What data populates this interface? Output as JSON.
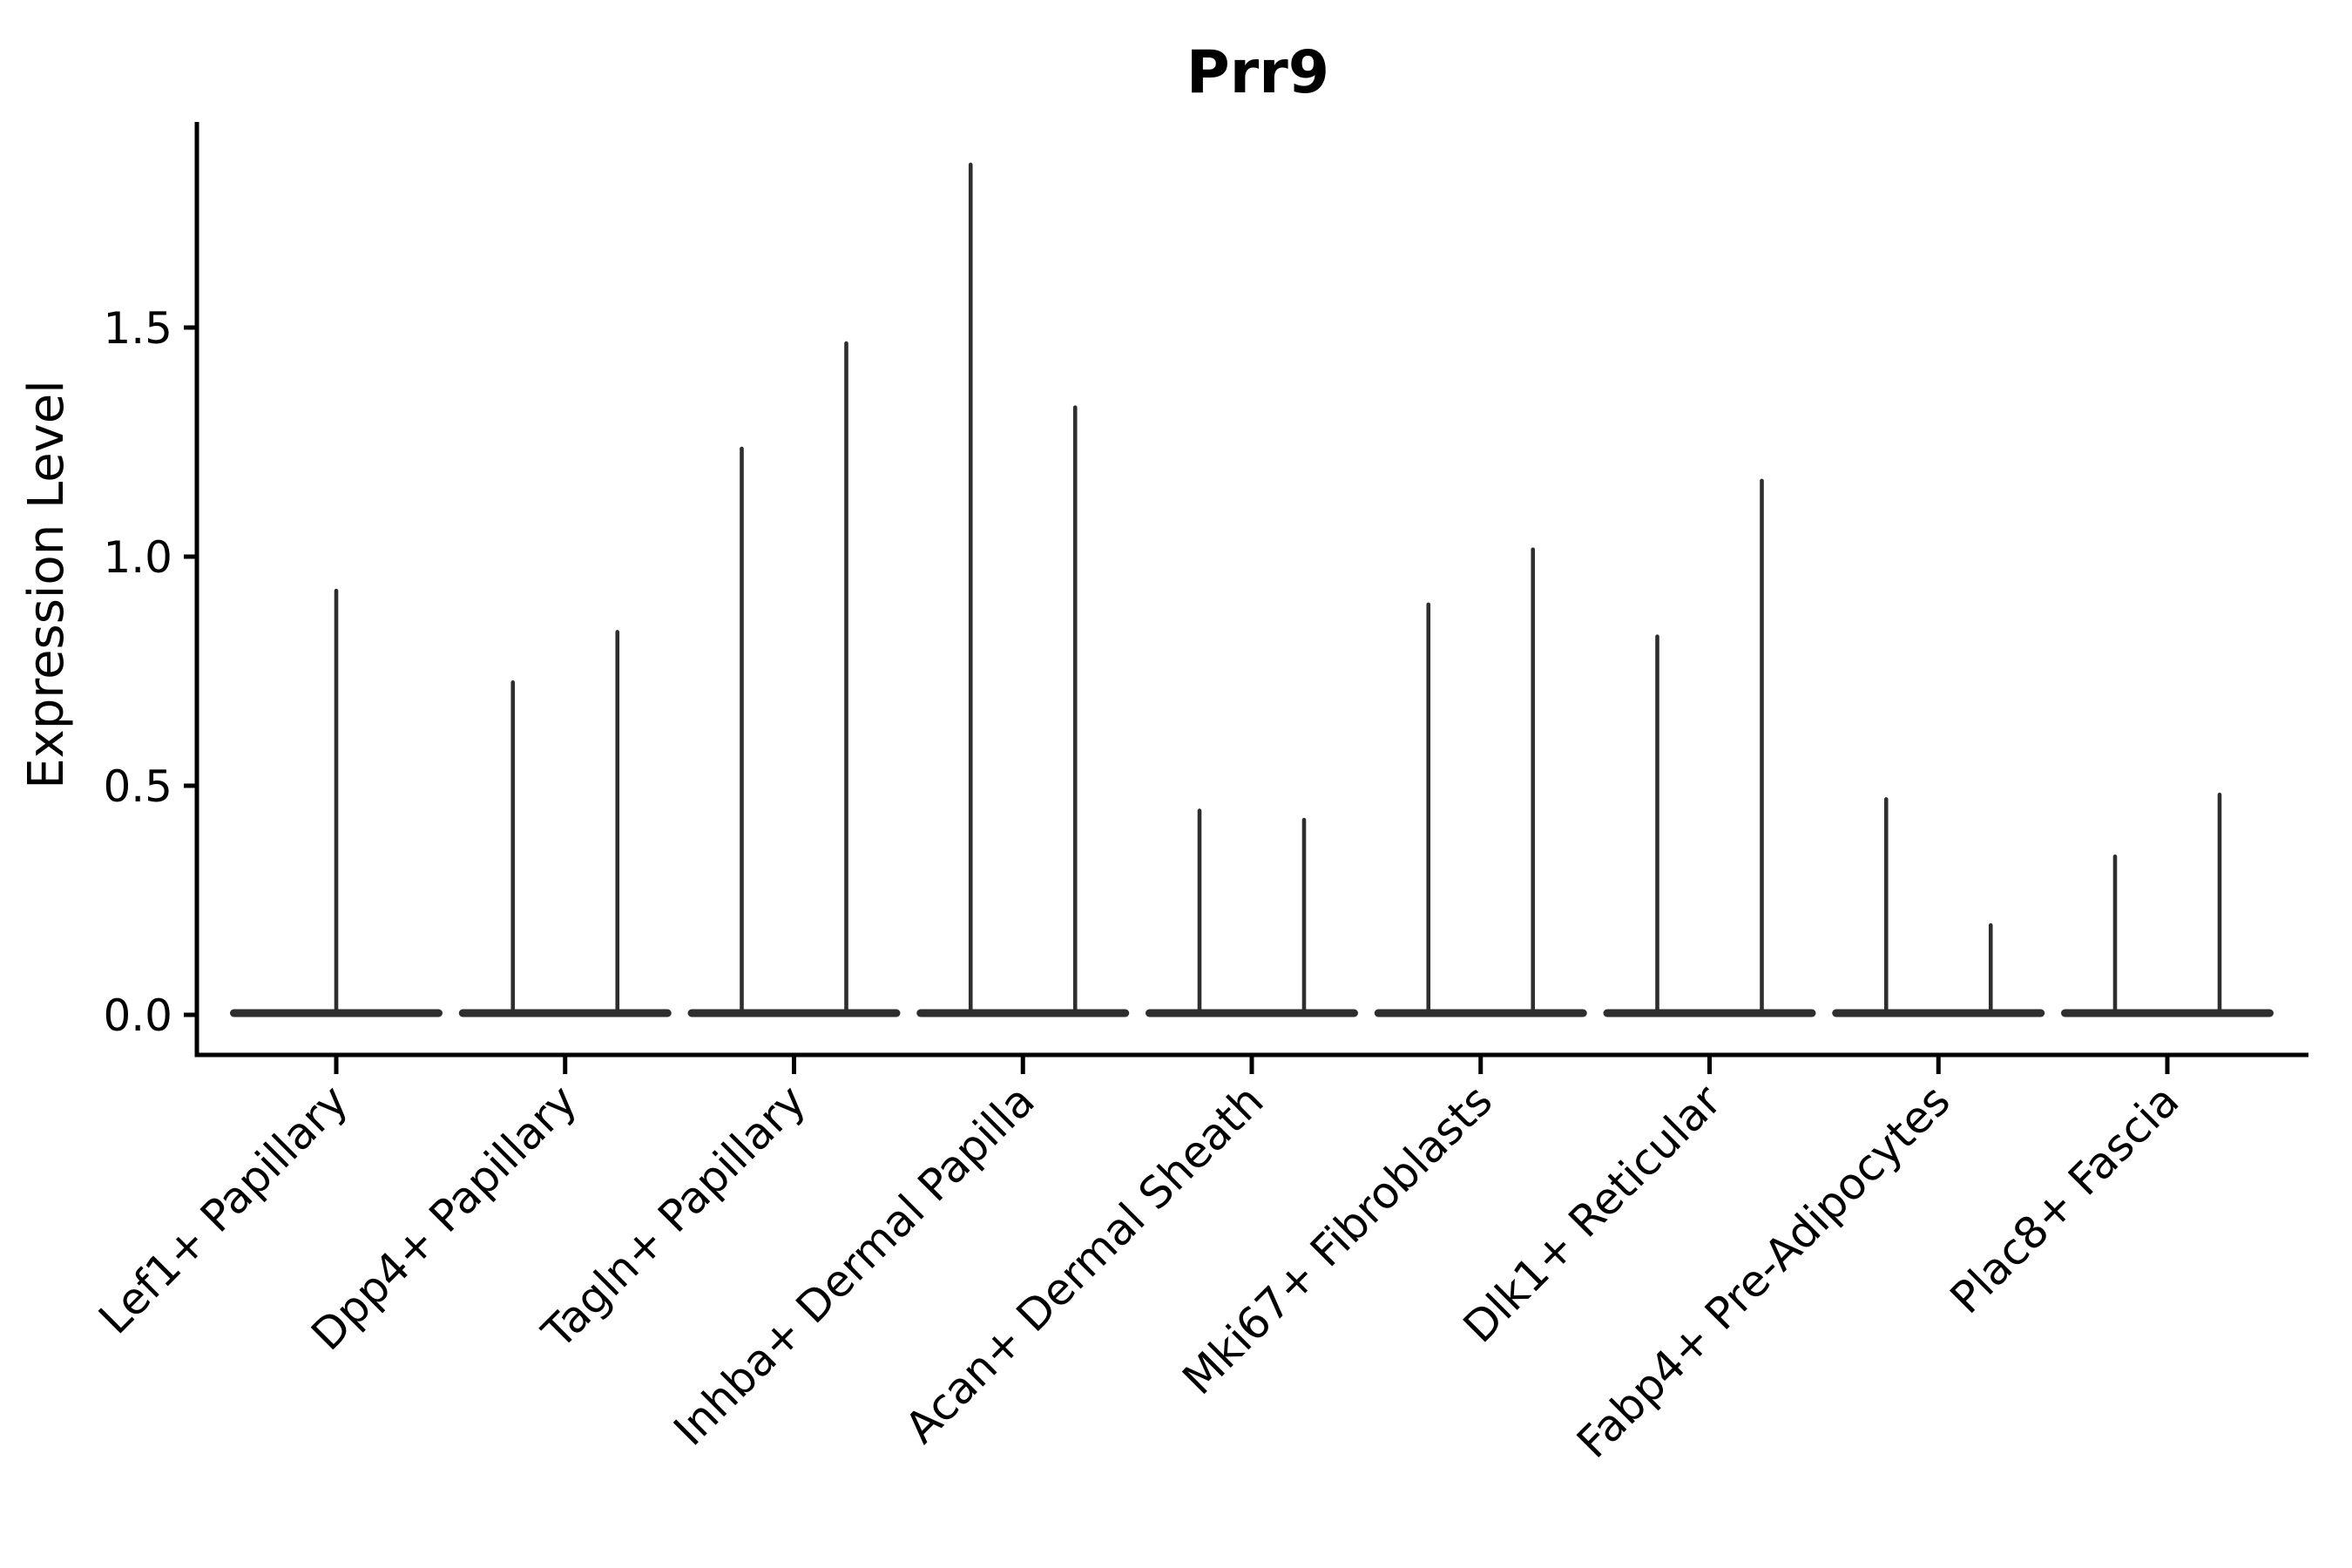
{
  "page": {
    "background": "#ffffff"
  },
  "chart_data": {
    "type": "violin",
    "title": "Prr9",
    "xlabel": "",
    "ylabel": "Expression Level",
    "grid": false,
    "legend": "none",
    "ylim": [
      -0.09,
      1.95
    ],
    "yticks": [
      {
        "value": 0.0,
        "label": "0.0"
      },
      {
        "value": 0.5,
        "label": "0.5"
      },
      {
        "value": 1.0,
        "label": "1.0"
      },
      {
        "value": 1.5,
        "label": "1.5"
      }
    ],
    "categories": [
      "Lef1+ Papillary",
      "Dpp4+ Papillary",
      "Tagln+ Papillary",
      "Inhba+ Dermal Papilla",
      "Acan+ Dermal Sheath",
      "Mki67+ Fibroblasts",
      "Dlk1+ Reticular",
      "Fabp4+ Pre-Adipocytes",
      "Plac8+ Fascia"
    ],
    "violins": [
      {
        "category": "Lef1+ Papillary",
        "base_value": 0.0,
        "peaks": [
          {
            "offset": 0,
            "max": 0.93
          }
        ]
      },
      {
        "category": "Dpp4+ Papillary",
        "base_value": 0.0,
        "peaks": [
          {
            "offset": -1,
            "max": 0.73
          },
          {
            "offset": 1,
            "max": 0.84
          }
        ]
      },
      {
        "category": "Tagln+ Papillary",
        "base_value": 0.0,
        "peaks": [
          {
            "offset": -1,
            "max": 1.24
          },
          {
            "offset": 1,
            "max": 1.47
          }
        ]
      },
      {
        "category": "Inhba+ Dermal Papilla",
        "base_value": 0.0,
        "peaks": [
          {
            "offset": -1,
            "max": 1.86
          },
          {
            "offset": 1,
            "max": 1.33
          }
        ]
      },
      {
        "category": "Acan+ Dermal Sheath",
        "base_value": 0.0,
        "peaks": [
          {
            "offset": -1,
            "max": 0.45
          },
          {
            "offset": 1,
            "max": 0.43
          }
        ]
      },
      {
        "category": "Mki67+ Fibroblasts",
        "base_value": 0.0,
        "peaks": [
          {
            "offset": -1,
            "max": 0.9
          },
          {
            "offset": 1,
            "max": 1.02
          }
        ]
      },
      {
        "category": "Dlk1+ Reticular",
        "base_value": 0.0,
        "peaks": [
          {
            "offset": -1,
            "max": 0.83
          },
          {
            "offset": 1,
            "max": 1.17
          }
        ]
      },
      {
        "category": "Fabp4+ Pre-Adipocytes",
        "base_value": 0.0,
        "peaks": [
          {
            "offset": -1,
            "max": 0.475
          },
          {
            "offset": 1,
            "max": 0.2
          }
        ]
      },
      {
        "category": "Plac8+ Fascia",
        "base_value": 0.0,
        "peaks": [
          {
            "offset": -1,
            "max": 0.35
          },
          {
            "offset": 1,
            "max": 0.485
          }
        ]
      }
    ],
    "colors": {
      "violin": "#2e2e2e",
      "axis": "#000000",
      "text": "#000000"
    }
  }
}
